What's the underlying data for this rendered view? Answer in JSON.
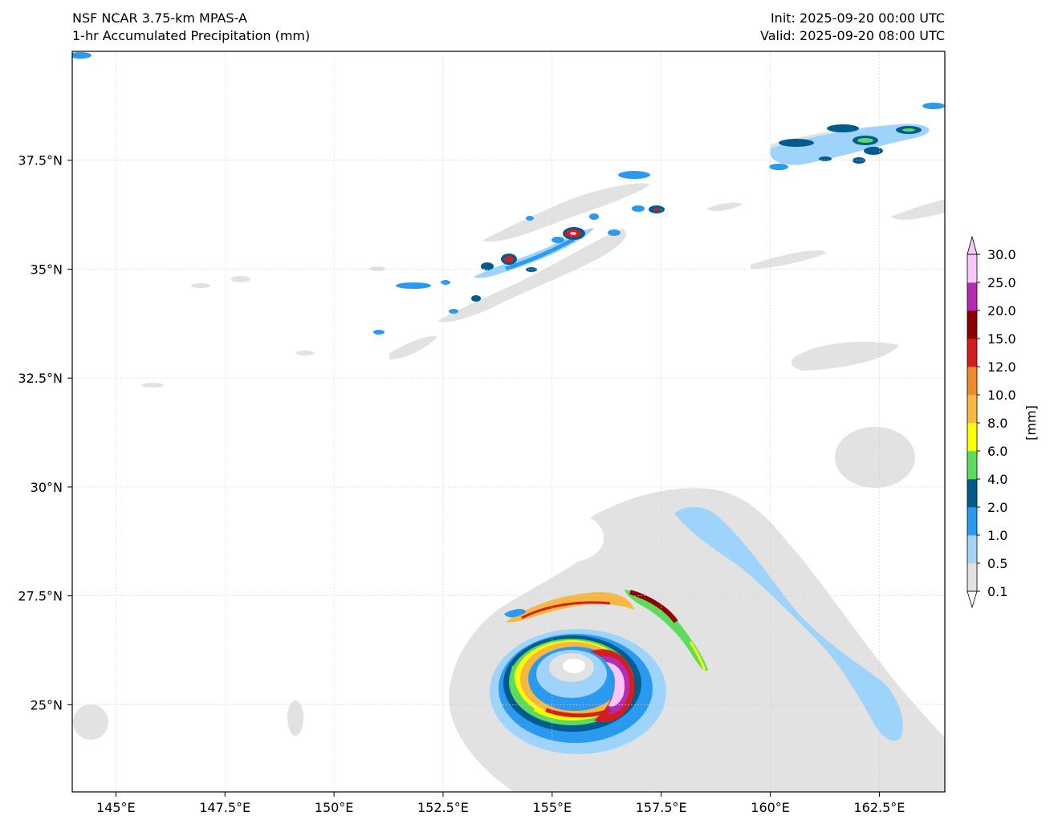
{
  "header": {
    "model": "NSF NCAR 3.75-km MPAS-A",
    "field": "1-hr Accumulated Precipitation (mm)",
    "init": "Init: 2025-09-20 00:00 UTC",
    "valid": "Valid: 2025-09-20 08:00 UTC"
  },
  "map": {
    "lon_range": [
      144.0,
      164.0
    ],
    "lat_range": [
      23.0,
      40.0
    ],
    "x_ticks": [
      "145°E",
      "147.5°E",
      "150°E",
      "152.5°E",
      "155°E",
      "157.5°E",
      "160°E",
      "162.5°E"
    ],
    "y_ticks": [
      "25°N",
      "27.5°N",
      "30°N",
      "32.5°N",
      "35°N",
      "37.5°N"
    ],
    "gridlines": true
  },
  "colorbar": {
    "unit_label": "[mm]",
    "levels": [
      "0.1",
      "0.5",
      "1.0",
      "2.0",
      "4.0",
      "6.0",
      "8.0",
      "10.0",
      "12.0",
      "15.0",
      "20.0",
      "25.0",
      "30.0"
    ],
    "colors": [
      "#e2e2e2",
      "#a6d2f4",
      "#2a9af0",
      "#005b8e",
      "#5cdc5c",
      "#ffff00",
      "#f7b740",
      "#ef8a2a",
      "#d41d1d",
      "#8e0000",
      "#b42cb4",
      "#f8c6f8"
    ],
    "extend": "both"
  }
}
